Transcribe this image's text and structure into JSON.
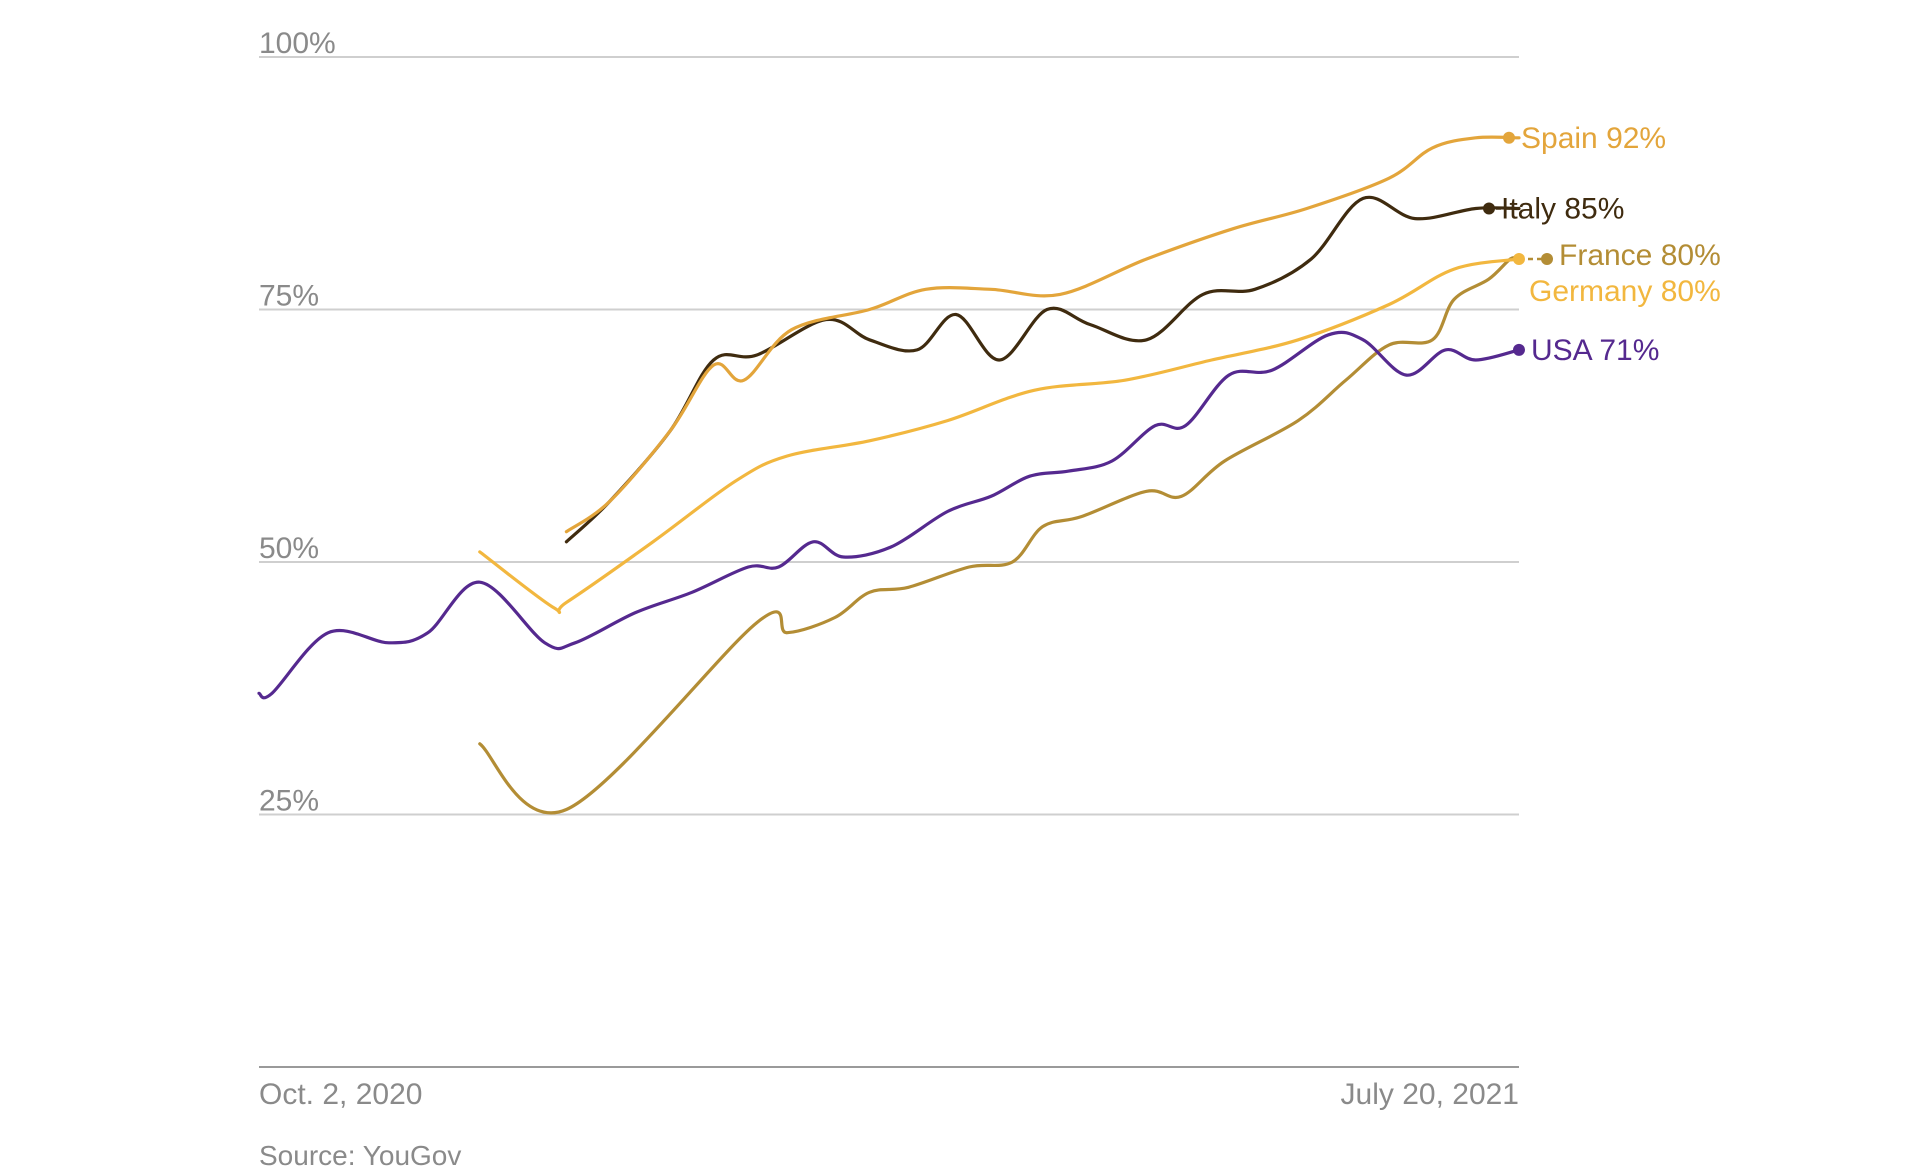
{
  "chart_data": {
    "type": "line",
    "x_range": [
      "2020-10-02",
      "2021-07-20"
    ],
    "x_tick_labels": [
      "Oct. 2, 2020",
      "July 20, 2021"
    ],
    "ylim": [
      0,
      100
    ],
    "y_ticks": [
      25,
      50,
      75,
      100
    ],
    "y_tick_labels": [
      "25%",
      "50%",
      "75%",
      "100%"
    ],
    "grid": true,
    "source": "Source: YouGov",
    "series": [
      {
        "name": "USA",
        "end_label": "USA 71%",
        "color": "#55298f",
        "points": [
          [
            "2020-10-02",
            37
          ],
          [
            "2020-10-05",
            37
          ],
          [
            "2020-10-18",
            43
          ],
          [
            "2020-11-01",
            42
          ],
          [
            "2020-11-10",
            43
          ],
          [
            "2020-11-22",
            48
          ],
          [
            "2020-12-07",
            42
          ],
          [
            "2020-12-14",
            42
          ],
          [
            "2020-12-28",
            45
          ],
          [
            "2021-01-10",
            47
          ],
          [
            "2021-01-23",
            49.5
          ],
          [
            "2021-01-30",
            49.5
          ],
          [
            "2021-02-07",
            52
          ],
          [
            "2021-02-14",
            50.5
          ],
          [
            "2021-02-25",
            51.5
          ],
          [
            "2021-03-10",
            55
          ],
          [
            "2021-03-20",
            56.5
          ],
          [
            "2021-03-29",
            58.5
          ],
          [
            "2021-04-07",
            59
          ],
          [
            "2021-04-17",
            60
          ],
          [
            "2021-04-27",
            63.5
          ],
          [
            "2021-05-04",
            63.5
          ],
          [
            "2021-05-14",
            68.5
          ],
          [
            "2021-05-24",
            69
          ],
          [
            "2021-06-06",
            72.5
          ],
          [
            "2021-06-14",
            72
          ],
          [
            "2021-06-24",
            68.5
          ],
          [
            "2021-07-03",
            71
          ],
          [
            "2021-07-10",
            70
          ],
          [
            "2021-07-20",
            71
          ]
        ]
      },
      {
        "name": "France",
        "end_label": "France 80%",
        "color": "#b38d35",
        "points": [
          [
            "2020-11-22",
            32
          ],
          [
            "2020-12-12",
            25.5
          ],
          [
            "2021-01-25",
            44
          ],
          [
            "2021-02-01",
            43
          ],
          [
            "2021-02-12",
            44.5
          ],
          [
            "2021-02-20",
            47
          ],
          [
            "2021-03-01",
            47.5
          ],
          [
            "2021-03-15",
            49.5
          ],
          [
            "2021-03-25",
            50
          ],
          [
            "2021-04-01",
            53.5
          ],
          [
            "2021-04-10",
            54.5
          ],
          [
            "2021-04-25",
            57
          ],
          [
            "2021-05-03",
            56.5
          ],
          [
            "2021-05-13",
            60
          ],
          [
            "2021-05-30",
            64
          ],
          [
            "2021-06-10",
            68
          ],
          [
            "2021-06-20",
            71.5
          ],
          [
            "2021-06-30",
            72
          ],
          [
            "2021-07-05",
            76
          ],
          [
            "2021-07-13",
            78
          ],
          [
            "2021-07-18",
            80
          ],
          [
            "2021-07-20",
            80
          ]
        ]
      },
      {
        "name": "Germany",
        "end_label": "Germany 80%",
        "color": "#f2b73f",
        "points": [
          [
            "2020-11-22",
            51
          ],
          [
            "2020-12-09",
            45.5
          ],
          [
            "2020-12-12",
            46
          ],
          [
            "2021-01-01",
            52
          ],
          [
            "2021-01-20",
            58
          ],
          [
            "2021-02-01",
            60.5
          ],
          [
            "2021-02-20",
            62
          ],
          [
            "2021-03-10",
            64
          ],
          [
            "2021-03-30",
            67
          ],
          [
            "2021-04-20",
            68
          ],
          [
            "2021-05-10",
            70
          ],
          [
            "2021-05-30",
            72
          ],
          [
            "2021-06-20",
            75.5
          ],
          [
            "2021-07-05",
            79
          ],
          [
            "2021-07-20",
            80
          ]
        ]
      },
      {
        "name": "Italy",
        "end_label": "Italy 85%",
        "color": "#3f2b0f",
        "points": [
          [
            "2020-12-12",
            52
          ],
          [
            "2020-12-22",
            56
          ],
          [
            "2021-01-05",
            63
          ],
          [
            "2021-01-15",
            70
          ],
          [
            "2021-01-25",
            70.5
          ],
          [
            "2021-02-10",
            74
          ],
          [
            "2021-02-20",
            72
          ],
          [
            "2021-03-03",
            71
          ],
          [
            "2021-03-12",
            74.5
          ],
          [
            "2021-03-22",
            70
          ],
          [
            "2021-04-02",
            75
          ],
          [
            "2021-04-12",
            73.5
          ],
          [
            "2021-04-25",
            72
          ],
          [
            "2021-05-08",
            76.5
          ],
          [
            "2021-05-20",
            77
          ],
          [
            "2021-06-02",
            80
          ],
          [
            "2021-06-14",
            86
          ],
          [
            "2021-06-26",
            84
          ],
          [
            "2021-07-10",
            85
          ],
          [
            "2021-07-20",
            85
          ]
        ]
      },
      {
        "name": "Spain",
        "end_label": "Spain 92%",
        "color": "#e3a53b",
        "points": [
          [
            "2020-12-12",
            53
          ],
          [
            "2020-12-22",
            56
          ],
          [
            "2021-01-05",
            63
          ],
          [
            "2021-01-15",
            69.5
          ],
          [
            "2021-01-22",
            68
          ],
          [
            "2021-02-02",
            73
          ],
          [
            "2021-02-20",
            75
          ],
          [
            "2021-03-05",
            77
          ],
          [
            "2021-03-20",
            77
          ],
          [
            "2021-04-05",
            76.5
          ],
          [
            "2021-04-25",
            80
          ],
          [
            "2021-05-15",
            83
          ],
          [
            "2021-06-01",
            85
          ],
          [
            "2021-06-20",
            88
          ],
          [
            "2021-06-30",
            91
          ],
          [
            "2021-07-10",
            92
          ],
          [
            "2021-07-20",
            92
          ]
        ]
      }
    ]
  }
}
